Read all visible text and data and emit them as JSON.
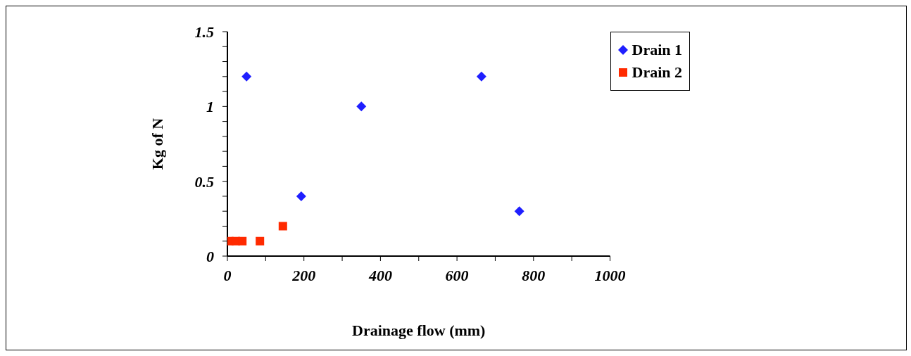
{
  "chart_data": {
    "type": "scatter",
    "xlabel": "Drainage flow (mm)",
    "ylabel": "Kg of N",
    "series": [
      {
        "name": "Drain 1",
        "color": "#1f1fff",
        "marker": "diamond",
        "x": [
          50,
          193,
          350,
          664,
          763
        ],
        "values": [
          1.2,
          0.4,
          1.0,
          1.2,
          0.3
        ]
      },
      {
        "name": "Drain 2",
        "color": "#ff2a00",
        "marker": "square",
        "x": [
          5,
          22,
          39,
          85,
          145
        ],
        "values": [
          0.1,
          0.1,
          0.1,
          0.1,
          0.2
        ]
      }
    ],
    "xlim": [
      0,
      1000
    ],
    "xticks": [
      0,
      {
        "value": 100,
        "label": null
      },
      200,
      {
        "value": 300,
        "label": null
      },
      400,
      {
        "value": 500,
        "label": null
      },
      600,
      {
        "value": 700,
        "label": null
      },
      800,
      {
        "value": 900,
        "label": null
      },
      1000
    ],
    "ylim": [
      0,
      1.5
    ],
    "yticks": [
      0,
      {
        "value": 0.1,
        "label": null
      },
      {
        "value": 0.2,
        "label": null
      },
      {
        "value": 0.3,
        "label": null
      },
      {
        "value": 0.4,
        "label": null
      },
      0.5,
      {
        "value": 0.6,
        "label": null
      },
      {
        "value": 0.7,
        "label": null
      },
      {
        "value": 0.8,
        "label": null
      },
      {
        "value": 0.9,
        "label": null
      },
      1,
      {
        "value": 1.1,
        "label": null
      },
      {
        "value": 1.2,
        "label": null
      },
      {
        "value": 1.3,
        "label": null
      },
      {
        "value": 1.4,
        "label": null
      },
      1.5
    ],
    "grid": false,
    "legend": "top right"
  }
}
